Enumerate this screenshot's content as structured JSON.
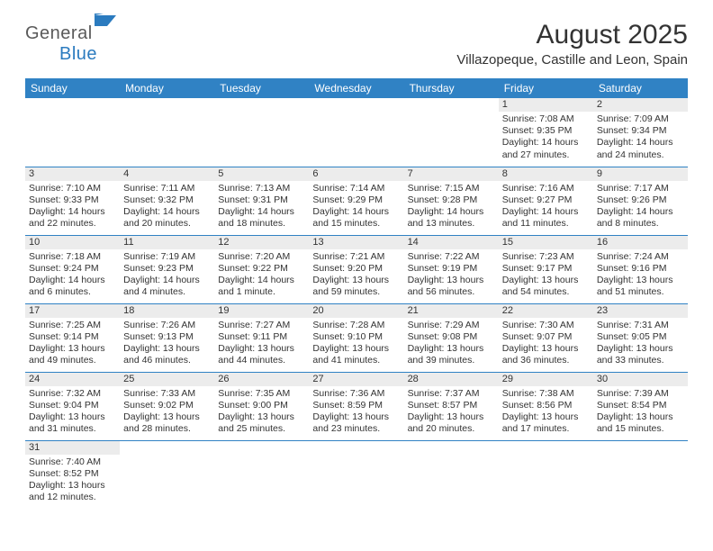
{
  "logo": {
    "general": "General",
    "blue": "Blue"
  },
  "title": "August 2025",
  "location": "Villazopeque, Castille and Leon, Spain",
  "colors": {
    "header_bg": "#3082c4",
    "header_text": "#ffffff",
    "daynum_bg": "#ececec",
    "row_border": "#3082c4",
    "text": "#333333",
    "logo_gray": "#5a5a5a",
    "logo_blue": "#2b7bbf"
  },
  "weekdays": [
    "Sunday",
    "Monday",
    "Tuesday",
    "Wednesday",
    "Thursday",
    "Friday",
    "Saturday"
  ],
  "weeks": [
    [
      null,
      null,
      null,
      null,
      null,
      {
        "n": "1",
        "sr": "7:08 AM",
        "ss": "9:35 PM",
        "dl": "14 hours and 27 minutes."
      },
      {
        "n": "2",
        "sr": "7:09 AM",
        "ss": "9:34 PM",
        "dl": "14 hours and 24 minutes."
      }
    ],
    [
      {
        "n": "3",
        "sr": "7:10 AM",
        "ss": "9:33 PM",
        "dl": "14 hours and 22 minutes."
      },
      {
        "n": "4",
        "sr": "7:11 AM",
        "ss": "9:32 PM",
        "dl": "14 hours and 20 minutes."
      },
      {
        "n": "5",
        "sr": "7:13 AM",
        "ss": "9:31 PM",
        "dl": "14 hours and 18 minutes."
      },
      {
        "n": "6",
        "sr": "7:14 AM",
        "ss": "9:29 PM",
        "dl": "14 hours and 15 minutes."
      },
      {
        "n": "7",
        "sr": "7:15 AM",
        "ss": "9:28 PM",
        "dl": "14 hours and 13 minutes."
      },
      {
        "n": "8",
        "sr": "7:16 AM",
        "ss": "9:27 PM",
        "dl": "14 hours and 11 minutes."
      },
      {
        "n": "9",
        "sr": "7:17 AM",
        "ss": "9:26 PM",
        "dl": "14 hours and 8 minutes."
      }
    ],
    [
      {
        "n": "10",
        "sr": "7:18 AM",
        "ss": "9:24 PM",
        "dl": "14 hours and 6 minutes."
      },
      {
        "n": "11",
        "sr": "7:19 AM",
        "ss": "9:23 PM",
        "dl": "14 hours and 4 minutes."
      },
      {
        "n": "12",
        "sr": "7:20 AM",
        "ss": "9:22 PM",
        "dl": "14 hours and 1 minute."
      },
      {
        "n": "13",
        "sr": "7:21 AM",
        "ss": "9:20 PM",
        "dl": "13 hours and 59 minutes."
      },
      {
        "n": "14",
        "sr": "7:22 AM",
        "ss": "9:19 PM",
        "dl": "13 hours and 56 minutes."
      },
      {
        "n": "15",
        "sr": "7:23 AM",
        "ss": "9:17 PM",
        "dl": "13 hours and 54 minutes."
      },
      {
        "n": "16",
        "sr": "7:24 AM",
        "ss": "9:16 PM",
        "dl": "13 hours and 51 minutes."
      }
    ],
    [
      {
        "n": "17",
        "sr": "7:25 AM",
        "ss": "9:14 PM",
        "dl": "13 hours and 49 minutes."
      },
      {
        "n": "18",
        "sr": "7:26 AM",
        "ss": "9:13 PM",
        "dl": "13 hours and 46 minutes."
      },
      {
        "n": "19",
        "sr": "7:27 AM",
        "ss": "9:11 PM",
        "dl": "13 hours and 44 minutes."
      },
      {
        "n": "20",
        "sr": "7:28 AM",
        "ss": "9:10 PM",
        "dl": "13 hours and 41 minutes."
      },
      {
        "n": "21",
        "sr": "7:29 AM",
        "ss": "9:08 PM",
        "dl": "13 hours and 39 minutes."
      },
      {
        "n": "22",
        "sr": "7:30 AM",
        "ss": "9:07 PM",
        "dl": "13 hours and 36 minutes."
      },
      {
        "n": "23",
        "sr": "7:31 AM",
        "ss": "9:05 PM",
        "dl": "13 hours and 33 minutes."
      }
    ],
    [
      {
        "n": "24",
        "sr": "7:32 AM",
        "ss": "9:04 PM",
        "dl": "13 hours and 31 minutes."
      },
      {
        "n": "25",
        "sr": "7:33 AM",
        "ss": "9:02 PM",
        "dl": "13 hours and 28 minutes."
      },
      {
        "n": "26",
        "sr": "7:35 AM",
        "ss": "9:00 PM",
        "dl": "13 hours and 25 minutes."
      },
      {
        "n": "27",
        "sr": "7:36 AM",
        "ss": "8:59 PM",
        "dl": "13 hours and 23 minutes."
      },
      {
        "n": "28",
        "sr": "7:37 AM",
        "ss": "8:57 PM",
        "dl": "13 hours and 20 minutes."
      },
      {
        "n": "29",
        "sr": "7:38 AM",
        "ss": "8:56 PM",
        "dl": "13 hours and 17 minutes."
      },
      {
        "n": "30",
        "sr": "7:39 AM",
        "ss": "8:54 PM",
        "dl": "13 hours and 15 minutes."
      }
    ],
    [
      {
        "n": "31",
        "sr": "7:40 AM",
        "ss": "8:52 PM",
        "dl": "13 hours and 12 minutes."
      },
      null,
      null,
      null,
      null,
      null,
      null
    ]
  ],
  "labels": {
    "sunrise": "Sunrise: ",
    "sunset": "Sunset: ",
    "daylight": "Daylight: "
  }
}
